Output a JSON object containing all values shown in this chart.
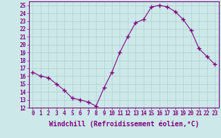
{
  "x": [
    0,
    1,
    2,
    3,
    4,
    5,
    6,
    7,
    8,
    9,
    10,
    11,
    12,
    13,
    14,
    15,
    16,
    17,
    18,
    19,
    20,
    21,
    22,
    23
  ],
  "y": [
    16.5,
    16.0,
    15.8,
    15.0,
    14.2,
    13.2,
    13.0,
    12.7,
    12.2,
    14.5,
    16.5,
    19.0,
    21.0,
    22.8,
    23.2,
    24.8,
    25.0,
    24.8,
    24.2,
    23.2,
    21.8,
    19.5,
    18.5,
    17.5
  ],
  "line_color": "#800080",
  "marker": "+",
  "marker_size": 4,
  "marker_linewidth": 1.0,
  "bg_color": "#cce8e8",
  "grid_color": "#b0d0d0",
  "xlabel": "Windchill (Refroidissement éolien,°C)",
  "xlim": [
    -0.5,
    23.5
  ],
  "ylim": [
    12,
    25.5
  ],
  "yticks": [
    12,
    13,
    14,
    15,
    16,
    17,
    18,
    19,
    20,
    21,
    22,
    23,
    24,
    25
  ],
  "xticks": [
    0,
    1,
    2,
    3,
    4,
    5,
    6,
    7,
    8,
    9,
    10,
    11,
    12,
    13,
    14,
    15,
    16,
    17,
    18,
    19,
    20,
    21,
    22,
    23
  ],
  "tick_label_fontsize": 5.5,
  "xlabel_fontsize": 7.0,
  "line_color_spine": "#800080",
  "tick_color": "#800080",
  "linewidth": 0.8
}
